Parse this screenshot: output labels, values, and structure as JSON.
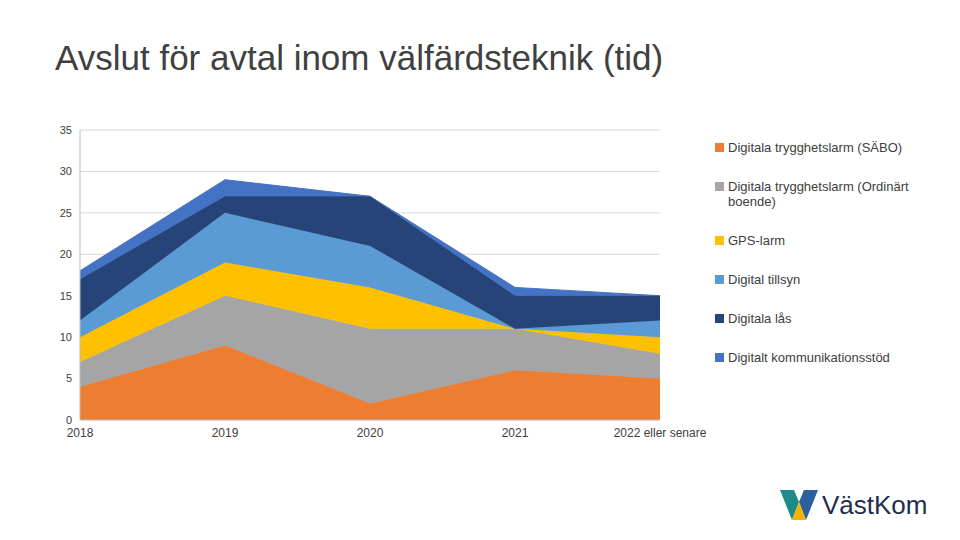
{
  "chart_data": {
    "type": "area",
    "title": "Avslut för avtal inom välfärdsteknik (tid)",
    "categories": [
      "2018",
      "2019",
      "2020",
      "2021",
      "2022 eller senare"
    ],
    "stacked": true,
    "grid": true,
    "legend": "right",
    "ylim": [
      0,
      35
    ],
    "yticks": [
      0,
      5,
      10,
      15,
      20,
      25,
      30,
      35
    ],
    "series": [
      {
        "name": "Digitala trygghetslarm (SÄBO)",
        "color": "#ED7D31",
        "values": [
          4,
          9,
          2,
          6,
          5
        ]
      },
      {
        "name": "Digitala trygghetslarm (Ordinärt boende)",
        "color": "#A5A5A5",
        "values": [
          3,
          6,
          9,
          5,
          3
        ]
      },
      {
        "name": "GPS-larm",
        "color": "#FFC000",
        "values": [
          3,
          4,
          5,
          0,
          2
        ]
      },
      {
        "name": "Digital tillsyn",
        "color": "#5B9BD5",
        "values": [
          2,
          6,
          5,
          0,
          2
        ]
      },
      {
        "name": "Digitala lås",
        "color": "#264478",
        "values": [
          5,
          2,
          6,
          4,
          3
        ]
      },
      {
        "name": "Digitalt kommunikationsstöd",
        "color": "#4472C4",
        "values": [
          1,
          2,
          0,
          1,
          0
        ]
      }
    ]
  },
  "logo": "VästKom"
}
